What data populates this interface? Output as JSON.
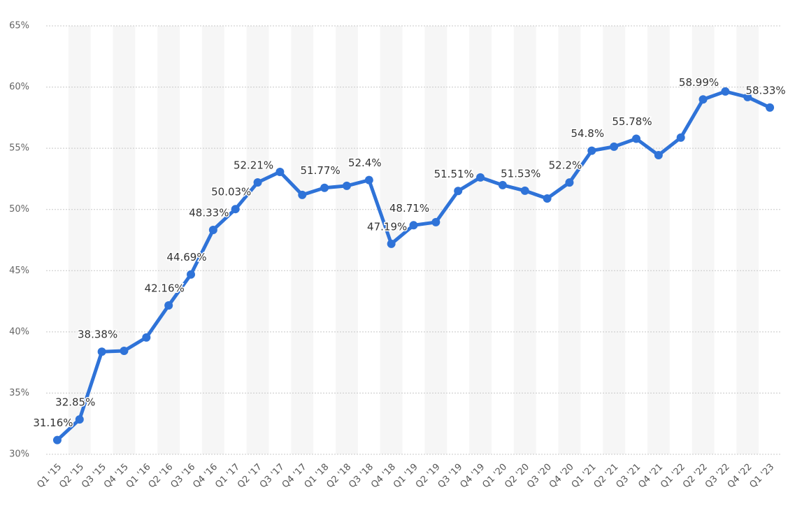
{
  "chart_data": {
    "type": "line",
    "categories": [
      "Q1 '15",
      "Q2 '15",
      "Q3 '15",
      "Q4 '15",
      "Q1 '16",
      "Q2 '16",
      "Q3 '16",
      "Q4 '16",
      "Q1 '17",
      "Q2 '17",
      "Q3 '17",
      "Q4 '17",
      "Q1 '18",
      "Q2 '18",
      "Q3 '18",
      "Q4 '18",
      "Q1 '19",
      "Q2 '19",
      "Q3 '19",
      "Q4 '19",
      "Q1 '20",
      "Q2 '20",
      "Q3 '20",
      "Q4 '20",
      "Q1 '21",
      "Q2 '21",
      "Q3 '21",
      "Q4 '21",
      "Q1 '22",
      "Q2 '22",
      "Q3 '22",
      "Q4 '22",
      "Q1 '23"
    ],
    "series": [
      {
        "color": "#2f73d8",
        "values": [
          31.16,
          32.85,
          38.38,
          38.45,
          39.54,
          42.16,
          44.69,
          48.33,
          50.03,
          52.21,
          53.07,
          51.19,
          51.77,
          51.93,
          52.4,
          47.19,
          48.71,
          48.96,
          51.51,
          52.62,
          51.99,
          51.53,
          50.9,
          52.2,
          54.8,
          55.13,
          55.78,
          54.44,
          55.87,
          58.99,
          59.64,
          59.18,
          58.33
        ],
        "value_labels": [
          "31.16%",
          "32.85%",
          "38.38%",
          null,
          null,
          "42.16%",
          "44.69%",
          "48.33%",
          "50.03%",
          "52.21%",
          null,
          null,
          "51.77%",
          null,
          "52.4%",
          "47.19%",
          "48.71%",
          null,
          "51.51%",
          null,
          null,
          "51.53%",
          null,
          "52.2%",
          "54.8%",
          null,
          "55.78%",
          null,
          null,
          "58.99%",
          null,
          null,
          "58.33%"
        ]
      }
    ],
    "ylim": [
      30,
      65
    ],
    "yticks": [
      {
        "value": 30,
        "label": "30%"
      },
      {
        "value": 35,
        "label": "35%"
      },
      {
        "value": 40,
        "label": "40%"
      },
      {
        "value": 45,
        "label": "45%"
      },
      {
        "value": 50,
        "label": "50%"
      },
      {
        "value": 55,
        "label": "55%"
      },
      {
        "value": 60,
        "label": "60%"
      },
      {
        "value": 65,
        "label": "65%"
      }
    ],
    "grid": true
  }
}
